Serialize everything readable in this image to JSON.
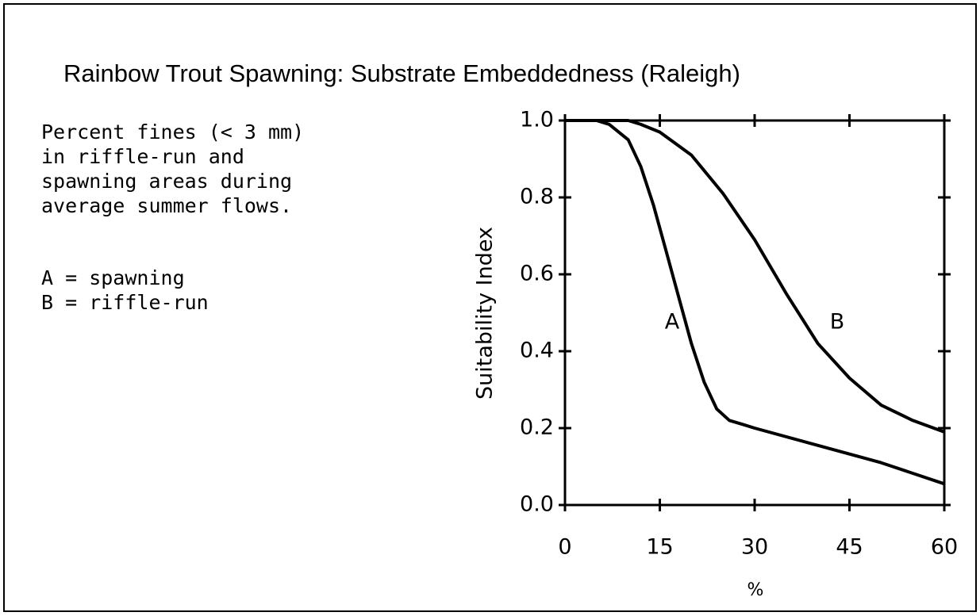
{
  "chart_data": {
    "type": "line",
    "title": "Rainbow Trout Spawning: Substrate Embeddedness (Raleigh)",
    "description": [
      "Percent fines (< 3 mm)",
      "in riffle-run and",
      "spawning areas during",
      "average summer flows."
    ],
    "legend_notes": [
      "A = spawning",
      "B = riffle-run"
    ],
    "xlabel": "%",
    "ylabel": "Suitability Index",
    "xlim": [
      0,
      60
    ],
    "xticks": [
      0,
      15,
      30,
      45,
      60
    ],
    "ylim": [
      0,
      1
    ],
    "yticks": [
      {
        "value": 0,
        "label": "0.0"
      },
      0.2,
      0.4,
      0.6,
      0.8,
      {
        "value": 1,
        "label": "1.0"
      }
    ],
    "series": [
      {
        "name": "A",
        "color": "#000000",
        "x": [
          0,
          5,
          7,
          10,
          12,
          14,
          16,
          18,
          20,
          22,
          24,
          26,
          28,
          30,
          40,
          50,
          60
        ],
        "values": [
          1,
          1,
          0.99,
          0.95,
          0.88,
          0.78,
          0.66,
          0.54,
          0.42,
          0.32,
          0.25,
          0.22,
          0.21,
          0.2,
          0.155,
          0.11,
          0.055
        ]
      },
      {
        "name": "B",
        "color": "#000000",
        "x": [
          0,
          10,
          12,
          15,
          20,
          25,
          30,
          35,
          40,
          45,
          50,
          55,
          60
        ],
        "values": [
          1,
          1,
          0.99,
          0.97,
          0.91,
          0.81,
          0.69,
          0.55,
          0.42,
          0.33,
          0.26,
          0.22,
          0.19
        ]
      }
    ]
  }
}
